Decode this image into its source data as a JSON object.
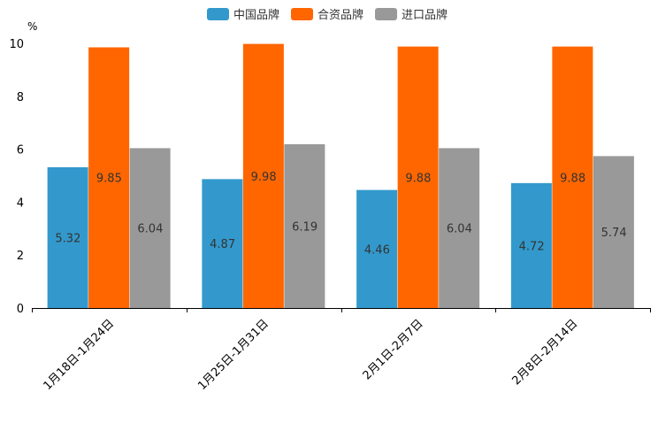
{
  "chart_data": {
    "type": "bar",
    "title": "",
    "xlabel": "",
    "ylabel": "%",
    "ylim": [
      0,
      10
    ],
    "yticks": [
      0,
      2,
      4,
      6,
      8,
      10
    ],
    "grid": false,
    "legend_position": "top-center",
    "categories": [
      "1月18日-1月24日",
      "1月25日-1月31日",
      "2月1日-2月7日",
      "2月8日-2月14日"
    ],
    "series": [
      {
        "name": "中国品牌",
        "color": "#3399cc",
        "values": [
          5.32,
          4.87,
          4.46,
          4.72
        ]
      },
      {
        "name": "合资品牌",
        "color": "#ff6600",
        "values": [
          9.85,
          9.98,
          9.88,
          9.88
        ]
      },
      {
        "name": "进口品牌",
        "color": "#999999",
        "values": [
          6.04,
          6.19,
          6.04,
          5.74
        ]
      }
    ]
  }
}
